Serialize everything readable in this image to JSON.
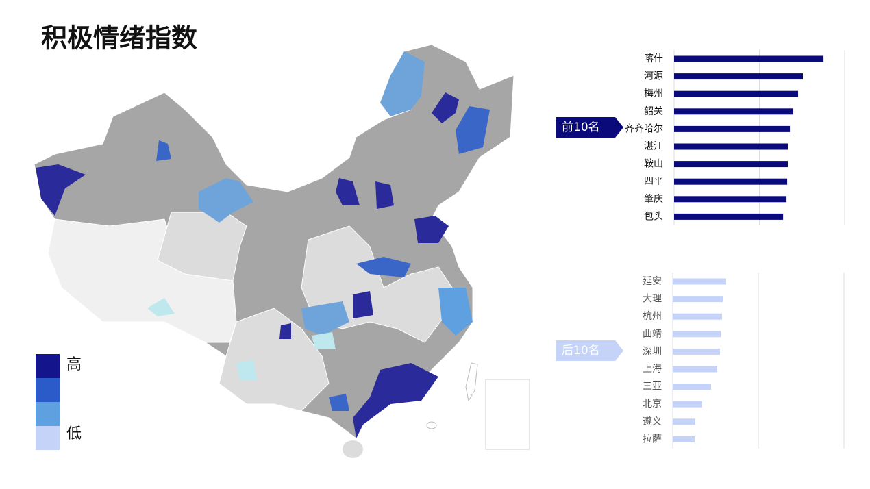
{
  "title": "积极情绪指数",
  "legend": {
    "labels": [
      "高",
      "低"
    ],
    "colors": [
      "#14148c",
      "#2a5bc8",
      "#5fa0e0",
      "#c5d3f9"
    ]
  },
  "chart_data": [
    {
      "type": "bar",
      "badge": "前10名",
      "color": "#0a0a7a",
      "categories": [
        "喀什",
        "河源",
        "梅州",
        "韶关",
        "齐齐哈尔",
        "湛江",
        "鞍山",
        "四平",
        "肇庆",
        "包头"
      ],
      "values": [
        87.6,
        75.5,
        72.7,
        69.9,
        67.9,
        66.7,
        66.7,
        66.3,
        65.9,
        63.9
      ],
      "xlim": [
        0,
        100
      ],
      "xticks": [
        0,
        50,
        100
      ],
      "grid": true
    },
    {
      "type": "bar",
      "badge": "后10名",
      "color": "#c5d3f9",
      "categories": [
        "延安",
        "大理",
        "杭州",
        "曲靖",
        "深圳",
        "上海",
        "三亚",
        "北京",
        "遵义",
        "拉萨"
      ],
      "values": [
        31.2,
        29.2,
        28.8,
        28.0,
        27.6,
        26.0,
        22.4,
        17.2,
        13.2,
        12.8
      ],
      "xlim": [
        0,
        100
      ],
      "xticks": [
        0,
        50,
        100
      ],
      "grid": true
    }
  ]
}
